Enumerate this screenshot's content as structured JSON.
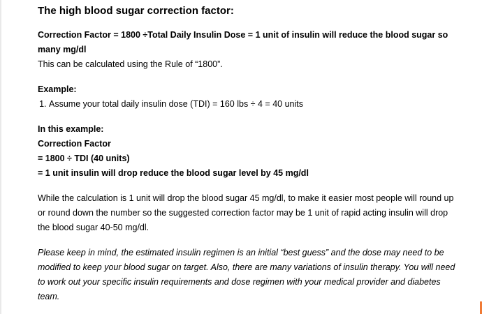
{
  "title": "The high blood sugar correction factor:",
  "formula": "Correction Factor = 1800 ÷Total Daily Insulin Dose = 1 unit of insulin will reduce the blood sugar so many mg/dl",
  "rule_note": "This can be calculated using the Rule of “1800”.",
  "example": {
    "heading": "Example:",
    "items": [
      "Assume your total daily insulin dose (TDI) = 160 lbs ÷ 4 = 40 units"
    ]
  },
  "this_example": {
    "heading": "In this example:",
    "line1": "Correction Factor",
    "line2": "= 1800 ÷ TDI (40 units)",
    "line3": "= 1 unit insulin will drop reduce the blood sugar level by 45 mg/dl"
  },
  "explanation": "While the calculation is 1 unit will drop the blood sugar 45 mg/dl, to make it easier most people will round up or round down the number so the suggested correction factor may be 1 unit of rapid acting insulin will drop the blood sugar 40-50 mg/dl.",
  "disclaimer": "Please keep in mind, the estimated insulin regimen is an initial “best guess” and the dose may need to be modified to keep your blood sugar on target. Also, there are many variations of insulin therapy. You will need to work out your specific insulin requirements and dose regimen with your medical provider and diabetes team."
}
